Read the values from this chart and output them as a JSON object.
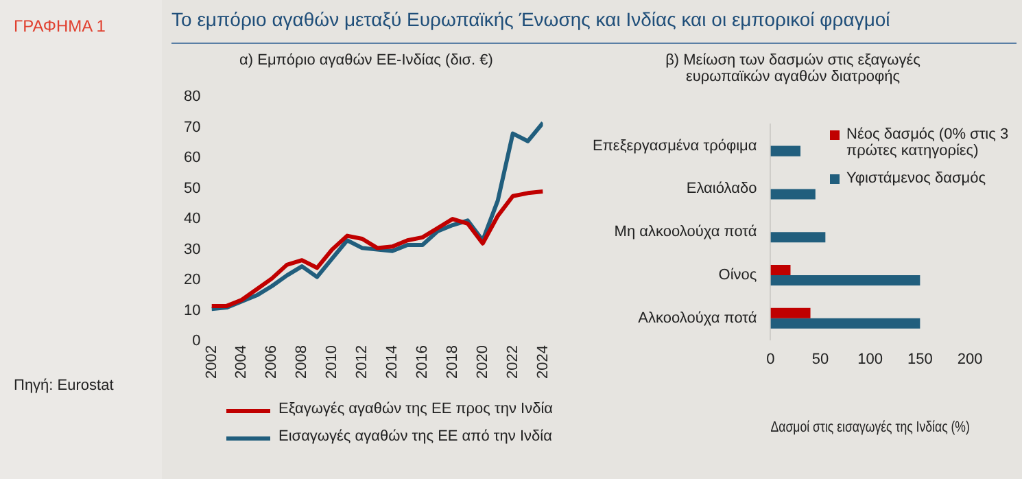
{
  "chart_data": [
    {
      "type": "line",
      "title": "α) Εμπόριο αγαθών ΕΕ-Ινδίας (δισ. €)",
      "annotations": [
        "ΓΡΑΦΗΜΑ 1",
        "Το εμπόριο αγαθών μεταξύ Ευρωπαϊκής Ένωσης και Ινδίας και οι εμπορικοί φραγμοί",
        "Πηγή: Eurostat"
      ],
      "x": [
        2002,
        2003,
        2004,
        2005,
        2006,
        2007,
        2008,
        2009,
        2010,
        2011,
        2012,
        2013,
        2014,
        2015,
        2016,
        2017,
        2018,
        2019,
        2020,
        2021,
        2022,
        2023,
        2024
      ],
      "series": [
        {
          "name": "Εξαγωγές αγαθών της ΕΕ προς την Ινδία",
          "color": "#c00000",
          "values": [
            11.5,
            11.5,
            13.5,
            17,
            20.5,
            25,
            26.5,
            24,
            30,
            34.5,
            33.5,
            30.5,
            31,
            33,
            34,
            37,
            40,
            38.5,
            32,
            41,
            47.5,
            48.5,
            49
          ]
        },
        {
          "name": "Εισαγωγές αγαθών της ΕΕ από την Ινδία",
          "color": "#215e7d",
          "values": [
            10.5,
            11,
            13,
            15,
            18,
            21.5,
            24.5,
            21,
            27,
            33,
            30.5,
            30,
            29.5,
            31.5,
            31.5,
            36,
            38,
            39.5,
            33,
            46,
            68,
            65.5,
            71.5
          ]
        }
      ],
      "xlim": [
        2002,
        2024
      ],
      "xticks": [
        2002,
        2004,
        2006,
        2008,
        2010,
        2012,
        2014,
        2016,
        2018,
        2020,
        2022,
        2024
      ],
      "ylim": [
        0,
        80
      ],
      "yticks": [
        0,
        10,
        20,
        30,
        40,
        50,
        60,
        70,
        80
      ],
      "legend": "bottom",
      "marker": "none"
    },
    {
      "type": "bar",
      "orientation": "horizontal",
      "title": "β) Μείωση των δασμών στις εξαγωγές ευρωπαϊκών αγαθών διατροφής",
      "categories": [
        "Επεξεργασμένα τρόφιμα",
        "Ελαιόλαδο",
        "Μη αλκοολούχα ποτά",
        "Οίνος",
        "Αλκοολούχα ποτά"
      ],
      "series": [
        {
          "name": "Νέος δασμός (0% στις 3 πρώτες κατηγορίες)",
          "color": "#c00000",
          "values": [
            0,
            0,
            0,
            20,
            40
          ]
        },
        {
          "name": "Υφιστάμενος δασμός",
          "color": "#215e7d",
          "values": [
            30,
            45,
            55,
            150,
            150
          ]
        }
      ],
      "xlim": [
        0,
        200
      ],
      "xticks": [
        0,
        50,
        100,
        150,
        200
      ],
      "xlabel": "Δασμοί στις εισαγωγές της Ινδίας (%)",
      "legend": "top right"
    }
  ]
}
